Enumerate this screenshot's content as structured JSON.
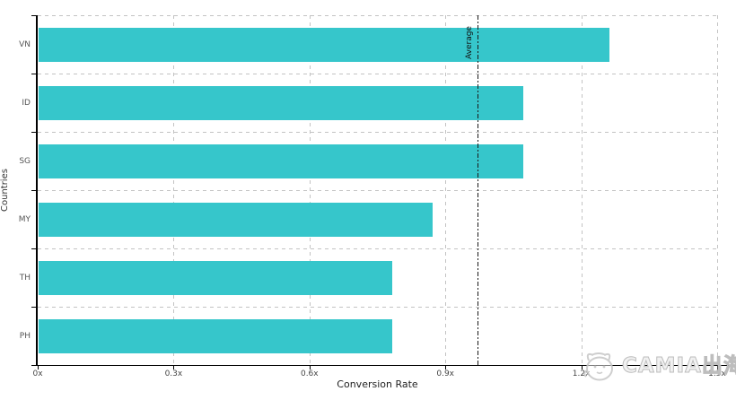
{
  "chart_data": {
    "type": "bar",
    "orientation": "horizontal",
    "title": "",
    "categories": [
      "VN",
      "ID",
      "SG",
      "MY",
      "TH",
      "PH"
    ],
    "values": [
      1.26,
      1.07,
      1.07,
      0.87,
      0.78,
      0.78
    ],
    "value_unit": "x",
    "xlabel": "Conversion Rate",
    "ylabel": "Countries",
    "xlim": [
      0,
      1.5
    ],
    "x_ticks": [
      0,
      0.3,
      0.6,
      0.9,
      1.2,
      1.5
    ],
    "x_tick_labels": [
      "0x",
      "0.3x",
      "0.6x",
      "0.9x",
      "1.2x",
      "1.5x"
    ],
    "grid": "dashed",
    "legend": "none",
    "annotations": [
      {
        "type": "vline",
        "value": 0.97,
        "label": "Average",
        "style": "dash-dot"
      }
    ],
    "colors": {
      "bar": "#36c6cb",
      "grid": "#c3c3c3",
      "axis": "#000000",
      "annotation": "#1a1a1a"
    }
  },
  "watermark": {
    "text": "CAMIA出海",
    "logo": "camia-mascot-logo",
    "color": "#bdbdbd"
  }
}
